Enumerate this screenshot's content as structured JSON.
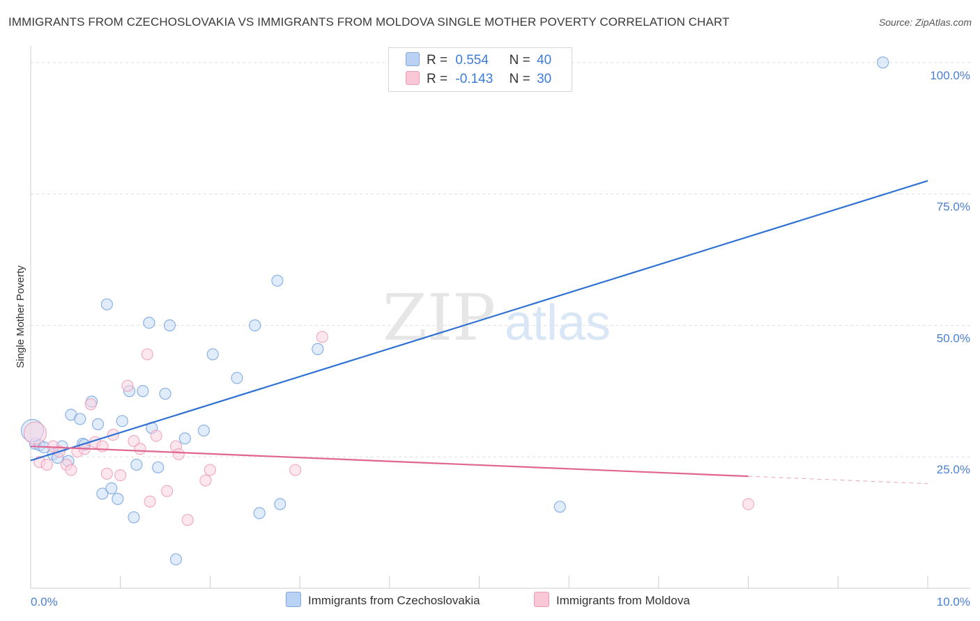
{
  "title": "IMMIGRANTS FROM CZECHOSLOVAKIA VS IMMIGRANTS FROM MOLDOVA SINGLE MOTHER POVERTY CORRELATION CHART",
  "source": "Source: ZipAtlas.com",
  "watermark": {
    "zip": "ZIP",
    "atlas": "atlas"
  },
  "legend": {
    "r_label": "R =",
    "n_label": "N =",
    "rows": [
      {
        "r": "0.554",
        "n": "40",
        "color": "#b9d2f3"
      },
      {
        "r": "-0.143",
        "n": "30",
        "color": "#f9c7d6"
      }
    ]
  },
  "chart_data": {
    "type": "scatter",
    "title": "IMMIGRANTS FROM CZECHOSLOVAKIA VS IMMIGRANTS FROM MOLDOVA SINGLE MOTHER POVERTY CORRELATION CHART",
    "xlabel": "",
    "ylabel": "Single Mother Poverty",
    "xlim": [
      0,
      10
    ],
    "ylim": [
      0,
      105
    ],
    "x_tick_labels": [
      "0.0%",
      "10.0%"
    ],
    "y_ticks": [
      25,
      50,
      75,
      100
    ],
    "y_tick_labels": [
      "25.0%",
      "50.0%",
      "75.0%",
      "100.0%"
    ],
    "grid": true,
    "series": [
      {
        "name": "Immigrants from Czechoslovakia",
        "color": "#4a86d8",
        "fill": "#b9d2f3",
        "points": [
          [
            0.05,
            27.5
          ],
          [
            0.1,
            27.2
          ],
          [
            0.15,
            26.8
          ],
          [
            0.25,
            25.5
          ],
          [
            0.3,
            24.8
          ],
          [
            0.35,
            27.0
          ],
          [
            0.42,
            24.2
          ],
          [
            0.45,
            33.0
          ],
          [
            0.55,
            32.2
          ],
          [
            0.58,
            27.5
          ],
          [
            0.6,
            27.3
          ],
          [
            0.68,
            35.5
          ],
          [
            0.75,
            31.2
          ],
          [
            0.8,
            18.0
          ],
          [
            0.85,
            54.0
          ],
          [
            0.9,
            19.0
          ],
          [
            0.97,
            17.0
          ],
          [
            1.02,
            31.8
          ],
          [
            1.1,
            37.5
          ],
          [
            1.15,
            13.5
          ],
          [
            1.18,
            23.5
          ],
          [
            1.25,
            37.5
          ],
          [
            1.32,
            50.5
          ],
          [
            1.35,
            30.5
          ],
          [
            1.42,
            23.0
          ],
          [
            1.5,
            37.0
          ],
          [
            1.55,
            50.0
          ],
          [
            1.62,
            5.5
          ],
          [
            1.72,
            28.5
          ],
          [
            1.93,
            30.0
          ],
          [
            2.03,
            44.5
          ],
          [
            2.3,
            40.0
          ],
          [
            2.5,
            50.0
          ],
          [
            2.55,
            14.3
          ],
          [
            2.75,
            58.5
          ],
          [
            2.78,
            16.0
          ],
          [
            3.2,
            45.5
          ],
          [
            5.9,
            15.5
          ],
          [
            9.5,
            100.0
          ],
          [
            0.02,
            30.0
          ]
        ]
      },
      {
        "name": "Immigrants from Moldova",
        "color": "#e8799f",
        "fill": "#f9c7d6",
        "points": [
          [
            0.1,
            24.0
          ],
          [
            0.18,
            23.5
          ],
          [
            0.25,
            27.0
          ],
          [
            0.32,
            26.0
          ],
          [
            0.4,
            23.5
          ],
          [
            0.45,
            22.5
          ],
          [
            0.52,
            26.0
          ],
          [
            0.6,
            26.5
          ],
          [
            0.67,
            35.0
          ],
          [
            0.72,
            27.8
          ],
          [
            0.8,
            27.0
          ],
          [
            0.85,
            21.8
          ],
          [
            0.92,
            29.2
          ],
          [
            1.0,
            21.5
          ],
          [
            1.08,
            38.5
          ],
          [
            1.15,
            28.0
          ],
          [
            1.22,
            26.5
          ],
          [
            1.3,
            44.5
          ],
          [
            1.33,
            16.5
          ],
          [
            1.4,
            29.0
          ],
          [
            1.52,
            18.5
          ],
          [
            1.62,
            27.0
          ],
          [
            1.65,
            25.5
          ],
          [
            1.75,
            13.0
          ],
          [
            1.95,
            20.5
          ],
          [
            2.0,
            22.5
          ],
          [
            2.95,
            22.5
          ],
          [
            3.25,
            47.8
          ],
          [
            8.0,
            16.0
          ],
          [
            0.05,
            29.5
          ]
        ]
      }
    ],
    "trendlines": [
      {
        "series": "Immigrants from Czechoslovakia",
        "x": [
          0,
          10
        ],
        "y": [
          24.3,
          77.5
        ],
        "style": "solid"
      },
      {
        "series": "Immigrants from Moldova",
        "x": [
          0,
          8.0
        ],
        "y": [
          27.0,
          21.3
        ],
        "style": "solid"
      },
      {
        "series": "Immigrants from Moldova",
        "x": [
          8.0,
          10
        ],
        "y": [
          21.3,
          19.9
        ],
        "style": "dashed"
      }
    ],
    "legend_position": "top-center"
  }
}
